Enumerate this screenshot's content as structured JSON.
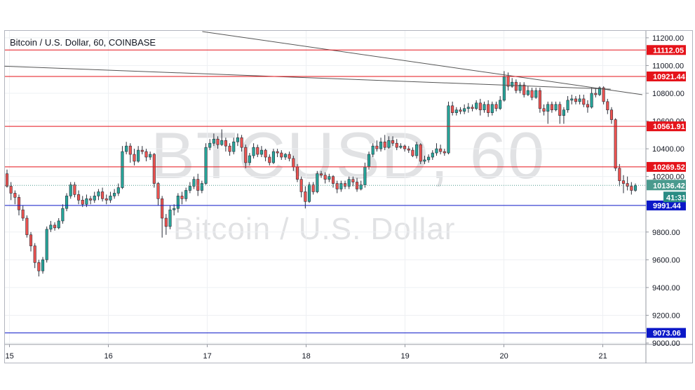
{
  "chart_data": {
    "type": "candlestick",
    "title": "Bitcoin / U.S. Dollar, 60, COINBASE",
    "watermark": {
      "symbol": "BTCUSD, 60",
      "name": "Bitcoin / U.S. Dollar"
    },
    "x_ticks": [
      "15",
      "16",
      "17",
      "18",
      "19",
      "20",
      "21"
    ],
    "y_ticks": [
      "11200.00",
      "11000.00",
      "10800.00",
      "10600.00",
      "10400.00",
      "10200.00",
      "9800.00",
      "9600.00",
      "9400.00",
      "9200.00",
      "9000.00"
    ],
    "ylim": [
      8990,
      11250
    ],
    "grid": true,
    "colors": {
      "up": "#26a69a",
      "down": "#ef5350",
      "wick": "#131722",
      "resistance": "#e5131a",
      "support": "#0b18c8",
      "trendline": "#555555",
      "current": "#4a9a8e",
      "countdown": "#2a8c84"
    },
    "horizontal_levels": [
      {
        "value": 11112.05,
        "label": "11112.05",
        "kind": "resistance"
      },
      {
        "value": 10921.44,
        "label": "10921.44",
        "kind": "resistance"
      },
      {
        "value": 10561.91,
        "label": "10561.91",
        "kind": "resistance"
      },
      {
        "value": 10269.52,
        "label": "10269.52",
        "kind": "resistance"
      },
      {
        "value": 9991.44,
        "label": "9991.44",
        "kind": "support"
      },
      {
        "value": 9073.06,
        "label": "9073.06",
        "kind": "support"
      }
    ],
    "current_price": {
      "value": 10136.42,
      "label": "10136.42",
      "countdown": "41:31"
    },
    "trendlines": [
      {
        "x1": 14.95,
        "y1": 10995,
        "x2": 21.08,
        "y2": 10830
      },
      {
        "x1": 16.95,
        "y1": 11245,
        "x2": 21.4,
        "y2": 10790
      }
    ],
    "candles": [
      [
        10220,
        10130,
        10250,
        10120
      ],
      [
        10130,
        10080,
        10160,
        10030
      ],
      [
        10080,
        10050,
        10100,
        10000
      ],
      [
        10050,
        9960,
        10070,
        9920
      ],
      [
        9960,
        9900,
        9990,
        9880
      ],
      [
        9900,
        9780,
        9920,
        9760
      ],
      [
        9780,
        9700,
        9800,
        9660
      ],
      [
        9700,
        9580,
        9720,
        9540
      ],
      [
        9580,
        9520,
        9600,
        9480
      ],
      [
        9520,
        9600,
        9620,
        9500
      ],
      [
        9600,
        9820,
        9840,
        9580
      ],
      [
        9820,
        9850,
        9880,
        9800
      ],
      [
        9850,
        9830,
        9870,
        9810
      ],
      [
        9830,
        9880,
        9900,
        9820
      ],
      [
        9880,
        9970,
        10000,
        9860
      ],
      [
        9970,
        10060,
        10080,
        9950
      ],
      [
        10060,
        10140,
        10160,
        10040
      ],
      [
        10140,
        10070,
        10160,
        10050
      ],
      [
        10070,
        10030,
        10100,
        10000
      ],
      [
        10030,
        10000,
        10060,
        9980
      ],
      [
        10000,
        10040,
        10070,
        9980
      ],
      [
        10040,
        10030,
        10060,
        10000
      ],
      [
        10030,
        10060,
        10090,
        10010
      ],
      [
        10060,
        10090,
        10110,
        10030
      ],
      [
        10090,
        10040,
        10120,
        10020
      ],
      [
        10040,
        10030,
        10070,
        10000
      ],
      [
        10030,
        10060,
        10090,
        10010
      ],
      [
        10060,
        10080,
        10110,
        10040
      ],
      [
        10080,
        10120,
        10150,
        10060
      ],
      [
        10120,
        10380,
        10420,
        10110
      ],
      [
        10380,
        10420,
        10450,
        10360
      ],
      [
        10420,
        10360,
        10440,
        10300
      ],
      [
        10360,
        10310,
        10400,
        10280
      ],
      [
        10310,
        10390,
        10420,
        10300
      ],
      [
        10390,
        10380,
        10420,
        10360
      ],
      [
        10380,
        10340,
        10400,
        10310
      ],
      [
        10340,
        10360,
        10380,
        10320
      ],
      [
        10360,
        10150,
        10370,
        10120
      ],
      [
        10150,
        10040,
        10160,
        9990
      ],
      [
        10040,
        9900,
        10060,
        9760
      ],
      [
        9900,
        9840,
        9930,
        9780
      ],
      [
        9840,
        9960,
        9990,
        9820
      ],
      [
        9960,
        9970,
        10000,
        9920
      ],
      [
        9970,
        10060,
        10080,
        9940
      ],
      [
        10060,
        10040,
        10090,
        10000
      ],
      [
        10040,
        10100,
        10120,
        10020
      ],
      [
        10100,
        10130,
        10160,
        10080
      ],
      [
        10130,
        10180,
        10200,
        10110
      ],
      [
        10180,
        10100,
        10220,
        10060
      ],
      [
        10100,
        10150,
        10170,
        10080
      ],
      [
        10150,
        10410,
        10440,
        10140
      ],
      [
        10410,
        10440,
        10470,
        10390
      ],
      [
        10440,
        10470,
        10510,
        10420
      ],
      [
        10470,
        10430,
        10490,
        10400
      ],
      [
        10430,
        10460,
        10540,
        10420
      ],
      [
        10460,
        10420,
        10480,
        10380
      ],
      [
        10420,
        10380,
        10440,
        10350
      ],
      [
        10380,
        10450,
        10480,
        10360
      ],
      [
        10450,
        10480,
        10510,
        10420
      ],
      [
        10480,
        10410,
        10500,
        10380
      ],
      [
        10410,
        10300,
        10430,
        10260
      ],
      [
        10300,
        10350,
        10370,
        10280
      ],
      [
        10350,
        10410,
        10440,
        10330
      ],
      [
        10410,
        10360,
        10430,
        10340
      ],
      [
        10360,
        10390,
        10420,
        10340
      ],
      [
        10390,
        10340,
        10400,
        10310
      ],
      [
        10340,
        10300,
        10360,
        10280
      ],
      [
        10300,
        10380,
        10400,
        10290
      ],
      [
        10380,
        10370,
        10400,
        10340
      ],
      [
        10370,
        10340,
        10390,
        10320
      ],
      [
        10340,
        10360,
        10370,
        10320
      ],
      [
        10360,
        10330,
        10380,
        10310
      ],
      [
        10330,
        10270,
        10350,
        10240
      ],
      [
        10270,
        10180,
        10290,
        10160
      ],
      [
        10180,
        10090,
        10200,
        10050
      ],
      [
        10090,
        10020,
        10130,
        9970
      ],
      [
        10020,
        10140,
        10160,
        10010
      ],
      [
        10140,
        10090,
        10160,
        10070
      ],
      [
        10090,
        10220,
        10240,
        10080
      ],
      [
        10220,
        10210,
        10240,
        10190
      ],
      [
        10210,
        10180,
        10230,
        10150
      ],
      [
        10180,
        10200,
        10220,
        10160
      ],
      [
        10200,
        10150,
        10210,
        10120
      ],
      [
        10150,
        10110,
        10170,
        10080
      ],
      [
        10110,
        10150,
        10170,
        10090
      ],
      [
        10150,
        10130,
        10170,
        10110
      ],
      [
        10130,
        10180,
        10200,
        10110
      ],
      [
        10180,
        10160,
        10200,
        10130
      ],
      [
        10160,
        10110,
        10190,
        10090
      ],
      [
        10110,
        10140,
        10170,
        10100
      ],
      [
        10140,
        10270,
        10300,
        10120
      ],
      [
        10270,
        10360,
        10380,
        10250
      ],
      [
        10360,
        10420,
        10440,
        10340
      ],
      [
        10420,
        10400,
        10460,
        10380
      ],
      [
        10400,
        10450,
        10480,
        10380
      ],
      [
        10450,
        10410,
        10500,
        10390
      ],
      [
        10410,
        10460,
        10490,
        10400
      ],
      [
        10460,
        10440,
        10490,
        10420
      ],
      [
        10440,
        10410,
        10470,
        10390
      ],
      [
        10410,
        10420,
        10440,
        10400
      ],
      [
        10420,
        10400,
        10430,
        10380
      ],
      [
        10400,
        10390,
        10420,
        10370
      ],
      [
        10390,
        10350,
        10410,
        10340
      ],
      [
        10350,
        10430,
        10450,
        10330
      ],
      [
        10430,
        10310,
        10440,
        10290
      ],
      [
        10310,
        10320,
        10350,
        10290
      ],
      [
        10320,
        10340,
        10360,
        10300
      ],
      [
        10340,
        10370,
        10390,
        10320
      ],
      [
        10370,
        10400,
        10440,
        10350
      ],
      [
        10400,
        10380,
        10430,
        10360
      ],
      [
        10380,
        10370,
        10400,
        10350
      ],
      [
        10370,
        10710,
        10740,
        10360
      ],
      [
        10710,
        10660,
        10740,
        10640
      ],
      [
        10660,
        10680,
        10700,
        10640
      ],
      [
        10680,
        10670,
        10700,
        10650
      ],
      [
        10670,
        10690,
        10720,
        10650
      ],
      [
        10690,
        10700,
        10730,
        10660
      ],
      [
        10700,
        10690,
        10720,
        10670
      ],
      [
        10690,
        10730,
        10750,
        10680
      ],
      [
        10730,
        10680,
        10760,
        10640
      ],
      [
        10680,
        10720,
        10740,
        10660
      ],
      [
        10720,
        10660,
        10750,
        10630
      ],
      [
        10660,
        10720,
        10740,
        10640
      ],
      [
        10720,
        10690,
        10740,
        10670
      ],
      [
        10690,
        10750,
        10780,
        10680
      ],
      [
        10750,
        10920,
        10960,
        10740
      ],
      [
        10920,
        10850,
        10950,
        10820
      ],
      [
        10850,
        10880,
        10910,
        10840
      ],
      [
        10880,
        10820,
        10900,
        10800
      ],
      [
        10820,
        10860,
        10880,
        10800
      ],
      [
        10860,
        10790,
        10880,
        10770
      ],
      [
        10790,
        10820,
        10850,
        10780
      ],
      [
        10820,
        10770,
        10840,
        10750
      ],
      [
        10770,
        10820,
        10840,
        10760
      ],
      [
        10820,
        10690,
        10840,
        10660
      ],
      [
        10690,
        10670,
        10720,
        10640
      ],
      [
        10670,
        10720,
        10740,
        10580
      ],
      [
        10720,
        10680,
        10740,
        10660
      ],
      [
        10680,
        10720,
        10740,
        10670
      ],
      [
        10720,
        10640,
        10740,
        10580
      ],
      [
        10640,
        10680,
        10700,
        10580
      ],
      [
        10680,
        10750,
        10780,
        10660
      ],
      [
        10750,
        10760,
        10790,
        10720
      ],
      [
        10760,
        10740,
        10780,
        10720
      ],
      [
        10740,
        10760,
        10790,
        10720
      ],
      [
        10760,
        10720,
        10790,
        10700
      ],
      [
        10720,
        10700,
        10750,
        10660
      ],
      [
        10700,
        10800,
        10840,
        10690
      ],
      [
        10800,
        10790,
        10840,
        10770
      ],
      [
        10790,
        10840,
        10850,
        10780
      ],
      [
        10840,
        10740,
        10850,
        10720
      ],
      [
        10740,
        10680,
        10760,
        10650
      ],
      [
        10680,
        10610,
        10700,
        10580
      ],
      [
        10610,
        10260,
        10620,
        10240
      ],
      [
        10260,
        10170,
        10290,
        10130
      ],
      [
        10170,
        10150,
        10210,
        10080
      ],
      [
        10150,
        10130,
        10200,
        10100
      ],
      [
        10130,
        10100,
        10160,
        10070
      ],
      [
        10100,
        10136,
        10150,
        10090
      ]
    ]
  }
}
